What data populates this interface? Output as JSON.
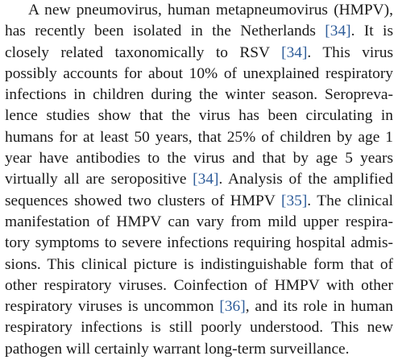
{
  "paragraph": {
    "lines": [
      {
        "segments": [
          {
            "text": "A new pneumovirus, human metapneumovirus (HMPV),",
            "cite": false
          }
        ]
      },
      {
        "segments": [
          {
            "text": "has recently been isolated in the Netherlands ",
            "cite": false
          },
          {
            "text": "[34]",
            "cite": true
          },
          {
            "text": ". It is",
            "cite": false
          }
        ]
      },
      {
        "segments": [
          {
            "text": "closely related taxonomically to RSV ",
            "cite": false
          },
          {
            "text": "[34]",
            "cite": true
          },
          {
            "text": ". This virus",
            "cite": false
          }
        ]
      },
      {
        "segments": [
          {
            "text": "possibly accounts for about 10% of unexplained respiratory",
            "cite": false
          }
        ]
      },
      {
        "segments": [
          {
            "text": "infections in children during the winter season. Seropreva-",
            "cite": false
          }
        ]
      },
      {
        "segments": [
          {
            "text": "lence studies show that the virus has been circulating in",
            "cite": false
          }
        ]
      },
      {
        "segments": [
          {
            "text": "humans for at least 50 years, that 25% of children by age 1",
            "cite": false
          }
        ]
      },
      {
        "segments": [
          {
            "text": "year have antibodies to the virus and that by age 5 years",
            "cite": false
          }
        ]
      },
      {
        "segments": [
          {
            "text": "virtually all are seropositive ",
            "cite": false
          },
          {
            "text": "[34]",
            "cite": true
          },
          {
            "text": ". Analysis of the amplified",
            "cite": false
          }
        ]
      },
      {
        "segments": [
          {
            "text": "sequences showed two clusters of HMPV ",
            "cite": false
          },
          {
            "text": "[35]",
            "cite": true
          },
          {
            "text": ". The clinical",
            "cite": false
          }
        ]
      },
      {
        "segments": [
          {
            "text": "manifestation of HMPV can vary from mild upper respira-",
            "cite": false
          }
        ]
      },
      {
        "segments": [
          {
            "text": "tory symptoms to severe infections requiring hospital admis-",
            "cite": false
          }
        ]
      },
      {
        "segments": [
          {
            "text": "sions. This clinical picture is indistinguishable form that of",
            "cite": false
          }
        ]
      },
      {
        "segments": [
          {
            "text": "other respiratory viruses. Coinfection of HMPV with other",
            "cite": false
          }
        ]
      },
      {
        "segments": [
          {
            "text": "respiratory viruses is uncommon ",
            "cite": false
          },
          {
            "text": "[36]",
            "cite": true
          },
          {
            "text": ", and its role in human",
            "cite": false
          }
        ]
      },
      {
        "segments": [
          {
            "text": "respiratory infections is still poorly understood. This new",
            "cite": false
          }
        ]
      },
      {
        "segments": [
          {
            "text": "pathogen will certainly warrant long-term surveillance.",
            "cite": false
          }
        ]
      }
    ]
  }
}
